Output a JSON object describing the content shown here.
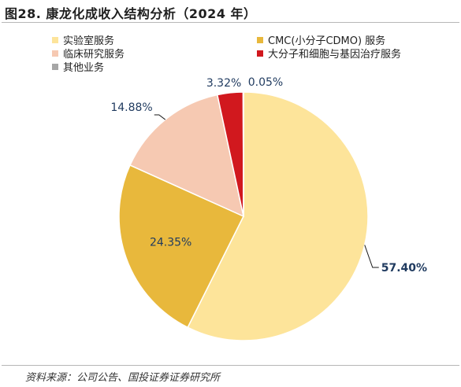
{
  "figure": {
    "title": "图28. 康龙化成收入结构分析（2024 年）",
    "source": "资料来源：公司公告、国投证券证券研究所"
  },
  "chart_data": {
    "type": "pie",
    "title": "图28. 康龙化成收入结构分析（2024 年）",
    "categories": [
      "实验室服务",
      "CMC(小分子CDMO) 服务",
      "临床研究服务",
      "大分子和细胞与基因治疗服务",
      "其他业务"
    ],
    "values": [
      57.4,
      24.35,
      14.88,
      3.32,
      0.05
    ],
    "value_labels": [
      "57.40%",
      "24.35%",
      "14.88%",
      "3.32%",
      "0.05%"
    ],
    "colors": [
      "#FDE49A",
      "#E8B83C",
      "#F6C9B2",
      "#D1181E",
      "#A6A6A6"
    ],
    "label_color": "#1F3A5F",
    "legend_placement": "top",
    "start_angle_deg": 0,
    "direction": "clockwise"
  }
}
